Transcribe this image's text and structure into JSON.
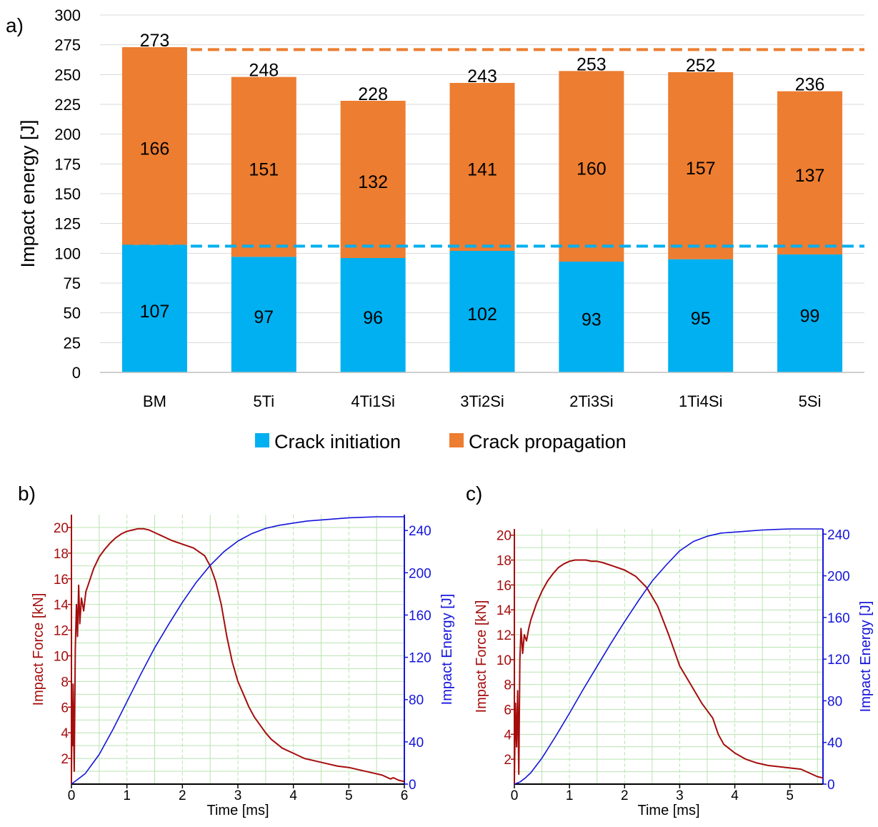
{
  "panel_labels": {
    "a": "a)",
    "b": "b)",
    "c": "c)"
  },
  "colors": {
    "initiation": "#00b0f0",
    "propagation": "#ed7d31",
    "force": "#a50d0d",
    "energy": "#1414dc",
    "grid_green": "#b8e4b0",
    "grid_gray": "#d9d9d9"
  },
  "chart_data": [
    {
      "type": "bar",
      "stacked": true,
      "categories": [
        "BM",
        "5Ti",
        "4Ti1Si",
        "3Ti2Si",
        "2Ti3Si",
        "1Ti4Si",
        "5Si"
      ],
      "series": [
        {
          "name": "Crack initiation",
          "values": [
            107,
            97,
            96,
            102,
            93,
            95,
            99
          ]
        },
        {
          "name": "Crack propagation",
          "values": [
            166,
            151,
            132,
            141,
            160,
            157,
            137
          ]
        }
      ],
      "totals": [
        273,
        248,
        228,
        243,
        253,
        252,
        236
      ],
      "ylabel": "Impact energy [J]",
      "ylim": [
        0,
        300
      ],
      "yticks": [
        "0",
        "25",
        "50",
        "75",
        "100",
        "125",
        "150",
        "175",
        "200",
        "225",
        "250",
        "275",
        "300"
      ],
      "reference_lines": [
        {
          "series": "Crack propagation",
          "value": 271
        },
        {
          "series": "Crack initiation",
          "value": 106
        }
      ],
      "legend": [
        "Crack initiation",
        "Crack propagation"
      ],
      "legend_position": "bottom"
    },
    {
      "type": "line",
      "panel": "b",
      "xlabel": "Time [ms]",
      "ylabel_left": "Impact Force [kN]",
      "ylabel_right": "Impact Energy [J]",
      "xlim": [
        0,
        6
      ],
      "ylim_left": [
        0,
        21
      ],
      "ylim_right": [
        0,
        255
      ],
      "xticks": [
        "0",
        "1",
        "2",
        "3",
        "4",
        "5",
        "6"
      ],
      "yticks_left": [
        "2",
        "4",
        "6",
        "8",
        "10",
        "12",
        "14",
        "16",
        "18",
        "20"
      ],
      "yticks_right": [
        "0",
        "40",
        "80",
        "120",
        "160",
        "200",
        "240"
      ],
      "series": [
        {
          "name": "Impact Force",
          "axis": "left",
          "x": [
            0,
            0.01,
            0.02,
            0.03,
            0.05,
            0.07,
            0.09,
            0.11,
            0.13,
            0.15,
            0.18,
            0.22,
            0.26,
            0.3,
            0.4,
            0.5,
            0.6,
            0.7,
            0.8,
            0.9,
            1.0,
            1.1,
            1.2,
            1.3,
            1.4,
            1.5,
            1.6,
            1.8,
            2.0,
            2.2,
            2.4,
            2.5,
            2.6,
            2.7,
            2.8,
            2.9,
            3.0,
            3.1,
            3.2,
            3.3,
            3.4,
            3.5,
            3.6,
            3.8,
            4.0,
            4.2,
            4.4,
            4.6,
            4.8,
            5.0,
            5.2,
            5.4,
            5.6,
            5.75,
            5.8,
            5.9,
            6.0
          ],
          "y": [
            0.5,
            6.5,
            3.0,
            7.8,
            1.0,
            10.5,
            14.0,
            11.5,
            15.5,
            12.5,
            14.5,
            13.5,
            15.0,
            15.5,
            16.8,
            17.7,
            18.3,
            18.8,
            19.2,
            19.5,
            19.7,
            19.8,
            19.9,
            19.9,
            19.8,
            19.6,
            19.4,
            19.0,
            18.7,
            18.4,
            17.8,
            17.0,
            15.8,
            14.0,
            11.5,
            9.5,
            8.0,
            7.0,
            6.0,
            5.2,
            4.6,
            4.0,
            3.5,
            2.8,
            2.4,
            2.0,
            1.8,
            1.6,
            1.4,
            1.3,
            1.1,
            0.9,
            0.7,
            0.4,
            0.5,
            0.3,
            0.2
          ]
        },
        {
          "name": "Impact Energy",
          "axis": "right",
          "x": [
            0,
            0.25,
            0.5,
            0.75,
            1.0,
            1.25,
            1.5,
            1.75,
            2.0,
            2.25,
            2.5,
            2.75,
            3.0,
            3.25,
            3.5,
            3.75,
            4.0,
            4.25,
            4.5,
            4.75,
            5.0,
            5.25,
            5.5,
            5.75,
            6.0
          ],
          "y": [
            0,
            10,
            28,
            52,
            78,
            104,
            129,
            151,
            172,
            191,
            207,
            220,
            230,
            237,
            242,
            245,
            247,
            249,
            250,
            251,
            252,
            252.5,
            253,
            253,
            253
          ]
        }
      ]
    },
    {
      "type": "line",
      "panel": "c",
      "xlabel": "Time [ms]",
      "ylabel_left": "Impact Force [kN]",
      "ylabel_right": "Impact Energy [J]",
      "xlim": [
        0,
        5.6
      ],
      "ylim_left": [
        0,
        20.5
      ],
      "ylim_right": [
        0,
        245
      ],
      "xticks": [
        "0",
        "1",
        "2",
        "3",
        "4",
        "5"
      ],
      "yticks_left": [
        "2",
        "4",
        "6",
        "8",
        "10",
        "12",
        "14",
        "16",
        "18",
        "20"
      ],
      "yticks_right": [
        "0",
        "40",
        "80",
        "120",
        "160",
        "200",
        "240"
      ],
      "series": [
        {
          "name": "Impact Force",
          "axis": "left",
          "x": [
            0,
            0.02,
            0.04,
            0.06,
            0.08,
            0.1,
            0.12,
            0.15,
            0.18,
            0.22,
            0.26,
            0.3,
            0.4,
            0.5,
            0.6,
            0.7,
            0.8,
            0.9,
            1.0,
            1.1,
            1.2,
            1.3,
            1.4,
            1.5,
            1.6,
            1.8,
            2.0,
            2.2,
            2.4,
            2.6,
            2.8,
            3.0,
            3.2,
            3.4,
            3.6,
            3.7,
            3.8,
            4.0,
            4.2,
            4.4,
            4.6,
            4.8,
            5.0,
            5.2,
            5.4,
            5.5,
            5.6
          ],
          "y": [
            0.3,
            6.5,
            3.0,
            7.5,
            0.8,
            10.0,
            12.5,
            10.5,
            12.0,
            11.5,
            12.5,
            13.2,
            14.5,
            15.5,
            16.3,
            16.9,
            17.4,
            17.7,
            17.9,
            18.0,
            18.0,
            18.0,
            17.9,
            17.9,
            17.8,
            17.5,
            17.2,
            16.7,
            15.8,
            14.3,
            12.0,
            9.5,
            8.0,
            6.5,
            5.3,
            4.0,
            3.2,
            2.5,
            2.0,
            1.7,
            1.5,
            1.4,
            1.3,
            1.2,
            0.8,
            0.6,
            0.5
          ]
        },
        {
          "name": "Impact Energy",
          "axis": "right",
          "x": [
            0,
            0.1,
            0.2,
            0.3,
            0.5,
            0.75,
            1.0,
            1.25,
            1.5,
            1.75,
            2.0,
            2.25,
            2.5,
            2.75,
            3.0,
            3.25,
            3.5,
            3.75,
            4.0,
            4.25,
            4.5,
            4.75,
            5.0,
            5.25,
            5.5,
            5.6
          ],
          "y": [
            0,
            2,
            6,
            11,
            25,
            46,
            68,
            91,
            113,
            135,
            156,
            176,
            195,
            210,
            224,
            233,
            238,
            241,
            242,
            243,
            244,
            244.5,
            245,
            245,
            245,
            245
          ]
        }
      ]
    }
  ]
}
